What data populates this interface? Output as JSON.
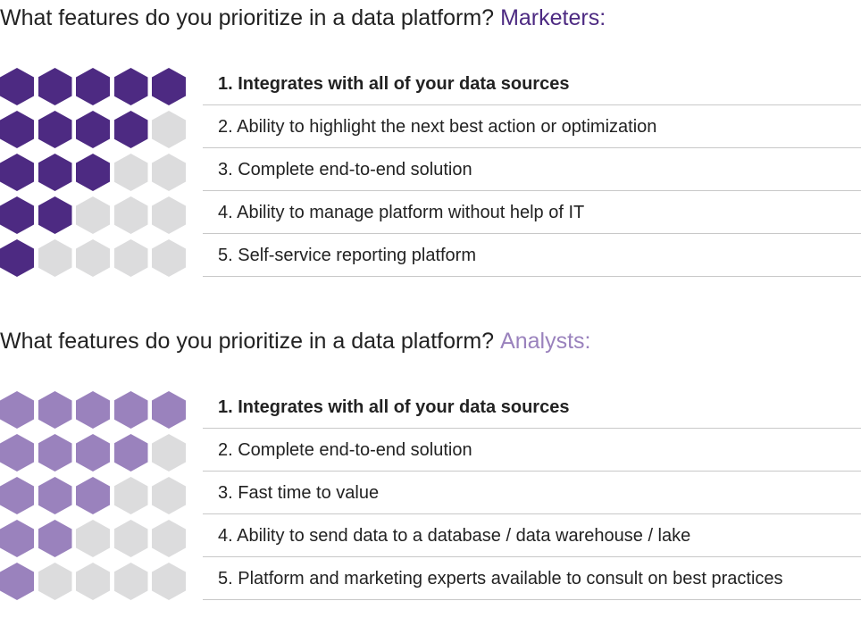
{
  "colors": {
    "marketers_accent": "#4d2a82",
    "analysts_accent": "#9a82bd",
    "inactive_hex": "#dcdcdd"
  },
  "sections": [
    {
      "heading": "What features do you prioritize in a data platform?",
      "audience": "Marketers:",
      "accent": "#4d2a82",
      "items": [
        "1. Integrates with all of your data sources",
        "2. Ability to highlight the next best action or optimization",
        "3. Complete end-to-end solution",
        "4. Ability to manage platform without help of IT",
        "5. Self-service reporting platform"
      ]
    },
    {
      "heading": "What features do you prioritize in a data platform?",
      "audience": "Analysts:",
      "accent": "#9a82bd",
      "items": [
        "1. Integrates with all of your data sources",
        "2. Complete end-to-end solution",
        "3. Fast time to value",
        "4. Ability to send data to a database / data warehouse / lake",
        "5. Platform and marketing experts available to consult on best practices"
      ]
    }
  ],
  "chart_data": [
    {
      "type": "table",
      "audience": "Marketers:",
      "categories": [
        "1. Integrates with all of your data sources",
        "2. Ability to highlight the next best action or optimization",
        "3. Complete end-to-end solution",
        "4. Ability to manage platform without help of IT",
        "5. Self-service reporting platform"
      ],
      "values": [
        5,
        4,
        3,
        2,
        1
      ],
      "max_value": 5
    },
    {
      "type": "table",
      "audience": "Analysts:",
      "categories": [
        "1. Integrates with all of your data sources",
        "2. Complete end-to-end solution",
        "3. Fast time to value",
        "4. Ability to send data to a database / data warehouse / lake",
        "5. Platform and marketing experts available to consult on best practices"
      ],
      "values": [
        5,
        4,
        3,
        2,
        1
      ],
      "max_value": 5
    }
  ]
}
